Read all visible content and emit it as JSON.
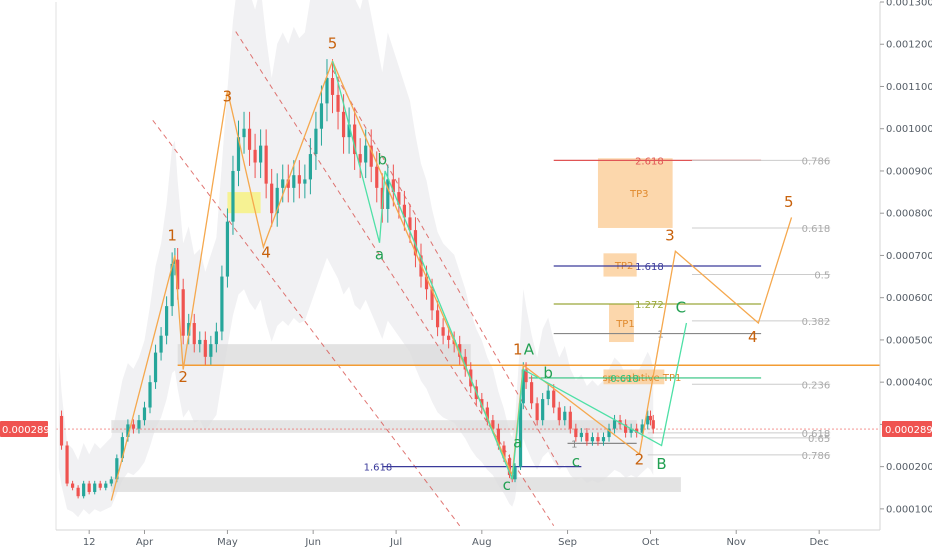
{
  "chart_data": {
    "type": "candlestick",
    "y_axis": {
      "ticks": [
        "0.0001000",
        "0.0002000",
        "0.0003000",
        "0.0004000",
        "0.0005000",
        "0.0006000",
        "0.0007000",
        "0.0008000",
        "0.0009000",
        "0.0010000",
        "0.0011000",
        "0.0012000",
        "0.0013000"
      ],
      "ylim": [
        5e-05,
        0.0013
      ],
      "current_price_label": "0.0002890",
      "current_price": 0.000289
    },
    "x_axis": {
      "ticks": [
        {
          "label": "12",
          "day": 12
        },
        {
          "label": "Apr",
          "day": 32
        },
        {
          "label": "May",
          "day": 62
        },
        {
          "label": "Jun",
          "day": 93
        },
        {
          "label": "Jul",
          "day": 123
        },
        {
          "label": "Aug",
          "day": 154
        },
        {
          "label": "Sep",
          "day": 185
        },
        {
          "label": "Oct",
          "day": 215
        },
        {
          "label": "Nov",
          "day": 246
        },
        {
          "label": "Dec",
          "day": 276
        }
      ],
      "xlim": [
        0,
        298
      ]
    },
    "price_path": [
      [
        1,
        0.00032
      ],
      [
        2,
        0.00025
      ],
      [
        4,
        0.00016
      ],
      [
        6,
        0.00015
      ],
      [
        8,
        0.00013
      ],
      [
        10,
        0.00016
      ],
      [
        12,
        0.00014
      ],
      [
        14,
        0.00016
      ],
      [
        16,
        0.00015
      ],
      [
        18,
        0.00016
      ],
      [
        20,
        0.00017
      ],
      [
        22,
        0.00022
      ],
      [
        24,
        0.00027
      ],
      [
        26,
        0.0003
      ],
      [
        28,
        0.00029
      ],
      [
        30,
        0.00031
      ],
      [
        32,
        0.00034
      ],
      [
        34,
        0.0004
      ],
      [
        36,
        0.00047
      ],
      [
        38,
        0.00051
      ],
      [
        40,
        0.00058
      ],
      [
        42,
        0.00068
      ],
      [
        43,
        0.00069
      ],
      [
        44,
        0.00062
      ],
      [
        46,
        0.00051
      ],
      [
        48,
        0.00054
      ],
      [
        50,
        0.00049
      ],
      [
        52,
        0.0005
      ],
      [
        54,
        0.00046
      ],
      [
        56,
        0.00049
      ],
      [
        58,
        0.00052
      ],
      [
        60,
        0.00065
      ],
      [
        62,
        0.00078
      ],
      [
        64,
        0.0009
      ],
      [
        66,
        0.00098
      ],
      [
        68,
        0.001
      ],
      [
        70,
        0.00095
      ],
      [
        72,
        0.00092
      ],
      [
        74,
        0.00096
      ],
      [
        76,
        0.00087
      ],
      [
        78,
        0.0008
      ],
      [
        80,
        0.00086
      ],
      [
        82,
        0.00088
      ],
      [
        84,
        0.00086
      ],
      [
        86,
        0.00089
      ],
      [
        88,
        0.00087
      ],
      [
        90,
        0.00088
      ],
      [
        92,
        0.00094
      ],
      [
        94,
        0.001
      ],
      [
        96,
        0.00106
      ],
      [
        98,
        0.00112
      ],
      [
        100,
        0.00108
      ],
      [
        102,
        0.00104
      ],
      [
        104,
        0.00098
      ],
      [
        106,
        0.00101
      ],
      [
        108,
        0.00094
      ],
      [
        110,
        0.00092
      ],
      [
        112,
        0.00096
      ],
      [
        114,
        0.00091
      ],
      [
        116,
        0.00086
      ],
      [
        118,
        0.00081
      ],
      [
        120,
        0.00088
      ],
      [
        122,
        0.00085
      ],
      [
        124,
        0.00082
      ],
      [
        126,
        0.00079
      ],
      [
        128,
        0.00076
      ],
      [
        130,
        0.0007
      ],
      [
        132,
        0.00065
      ],
      [
        134,
        0.00062
      ],
      [
        136,
        0.00057
      ],
      [
        138,
        0.00053
      ],
      [
        140,
        0.00051
      ],
      [
        142,
        0.0005
      ],
      [
        144,
        0.00049
      ],
      [
        146,
        0.00046
      ],
      [
        148,
        0.00043
      ],
      [
        150,
        0.00039
      ],
      [
        152,
        0.00036
      ],
      [
        154,
        0.00034
      ],
      [
        156,
        0.00031
      ],
      [
        158,
        0.00029
      ],
      [
        160,
        0.00025
      ],
      [
        162,
        0.00022
      ],
      [
        164,
        0.00018
      ],
      [
        165,
        0.00017
      ],
      [
        166,
        0.0002
      ],
      [
        168,
        0.00035
      ],
      [
        169,
        0.00043
      ],
      [
        170,
        0.0004
      ],
      [
        172,
        0.00035
      ],
      [
        174,
        0.00031
      ],
      [
        176,
        0.00036
      ],
      [
        178,
        0.00038
      ],
      [
        180,
        0.00034
      ],
      [
        182,
        0.00031
      ],
      [
        184,
        0.00033
      ],
      [
        186,
        0.00029
      ],
      [
        188,
        0.00027
      ],
      [
        190,
        0.00028
      ],
      [
        192,
        0.00026
      ],
      [
        194,
        0.00027
      ],
      [
        196,
        0.00026
      ],
      [
        198,
        0.00027
      ],
      [
        200,
        0.00029
      ],
      [
        202,
        0.00031
      ],
      [
        204,
        0.0003
      ],
      [
        206,
        0.00028
      ],
      [
        208,
        0.00029
      ],
      [
        210,
        0.00028
      ],
      [
        212,
        0.0003
      ],
      [
        214,
        0.00032
      ],
      [
        215,
        0.00031
      ],
      [
        216,
        0.00029
      ]
    ],
    "fib_levels_left": [
      {
        "label": "2.618",
        "value": 0.000925,
        "color": "#e05555"
      },
      {
        "label": "1.618",
        "value": 0.000675,
        "color": "#3a3a9a"
      },
      {
        "label": "1.272",
        "value": 0.000585,
        "color": "#9aa83a"
      },
      {
        "label": "1",
        "value": 0.000515,
        "color": "#888888"
      },
      {
        "label": "0.618",
        "value": 0.00041,
        "color": "#2ec27e"
      },
      {
        "label": "1.618",
        "value": 0.0002,
        "color": "#3a3a9a"
      },
      {
        "label": "1",
        "value": 0.000255,
        "color": "#888888"
      }
    ],
    "fib_levels_right": [
      {
        "label": "0.786",
        "value": 0.000925
      },
      {
        "label": "0.618",
        "value": 0.000765
      },
      {
        "label": "0.5",
        "value": 0.000655
      },
      {
        "label": "0.382",
        "value": 0.000545
      },
      {
        "label": "0.236",
        "value": 0.000395
      },
      {
        "label": "0.618",
        "value": 0.00028
      },
      {
        "label": "0.65",
        "value": 0.000268
      },
      {
        "label": "0.786",
        "value": 0.000228
      }
    ],
    "target_boxes": [
      {
        "label": "TP3",
        "d0": 196,
        "d1": 223,
        "v0": 0.000765,
        "v1": 0.00093
      },
      {
        "label": "TP2",
        "d0": 198,
        "d1": 210,
        "v0": 0.00065,
        "v1": 0.000705
      },
      {
        "label": "TP1",
        "d0": 200,
        "d1": 209,
        "v0": 0.000495,
        "v1": 0.000585
      },
      {
        "label": "speculative TP1",
        "d0": 198,
        "d1": 220,
        "v0": 0.000395,
        "v1": 0.00043
      }
    ],
    "support_level": {
      "value": 0.00044,
      "color": "#f39c33"
    },
    "wave_labels_orange": [
      {
        "label": "1",
        "day": 42,
        "value": 0.000735
      },
      {
        "label": "2",
        "day": 46,
        "value": 0.0004
      },
      {
        "label": "3",
        "day": 62,
        "value": 0.001065
      },
      {
        "label": "4",
        "day": 76,
        "value": 0.000695
      },
      {
        "label": "5",
        "day": 100,
        "value": 0.00119
      },
      {
        "label": "1",
        "day": 167,
        "value": 0.000465
      },
      {
        "label": "2",
        "day": 211,
        "value": 0.000205
      },
      {
        "label": "3",
        "day": 222,
        "value": 0.000735
      },
      {
        "label": "4",
        "day": 252,
        "value": 0.000495
      },
      {
        "label": "5",
        "day": 265,
        "value": 0.000815
      }
    ],
    "wave_labels_green": [
      {
        "label": "A",
        "day": 171,
        "value": 0.000465,
        "big": true
      },
      {
        "label": "B",
        "day": 219,
        "value": 0.000195,
        "big": true
      },
      {
        "label": "C",
        "day": 226,
        "value": 0.000565,
        "big": true
      },
      {
        "label": "a",
        "day": 117,
        "value": 0.00069,
        "big": false
      },
      {
        "label": "b",
        "day": 118,
        "value": 0.000915,
        "big": false
      },
      {
        "label": "c",
        "day": 163,
        "value": 0.000145,
        "big": false
      },
      {
        "label": "a",
        "day": 167,
        "value": 0.000245,
        "big": false
      },
      {
        "label": "b",
        "day": 178,
        "value": 0.00041,
        "big": false
      },
      {
        "label": "c",
        "day": 188,
        "value": 0.0002,
        "big": false
      }
    ],
    "orange_wave_path": [
      [
        20,
        0.00012
      ],
      [
        43,
        0.0007
      ],
      [
        46,
        0.00043
      ],
      [
        62,
        0.00109
      ],
      [
        75,
        0.00072
      ],
      [
        100,
        0.00116
      ],
      [
        165,
        0.00018
      ],
      [
        169,
        0.00044
      ],
      [
        211,
        0.00023
      ],
      [
        224,
        0.00071
      ],
      [
        254,
        0.00054
      ],
      [
        266,
        0.00079
      ]
    ],
    "green_wave_path": [
      [
        100,
        0.00116
      ],
      [
        117,
        0.00073
      ],
      [
        119,
        0.0009
      ],
      [
        165,
        0.00017
      ],
      [
        169,
        0.00043
      ],
      [
        219,
        0.00025
      ],
      [
        228,
        0.00054
      ]
    ]
  }
}
